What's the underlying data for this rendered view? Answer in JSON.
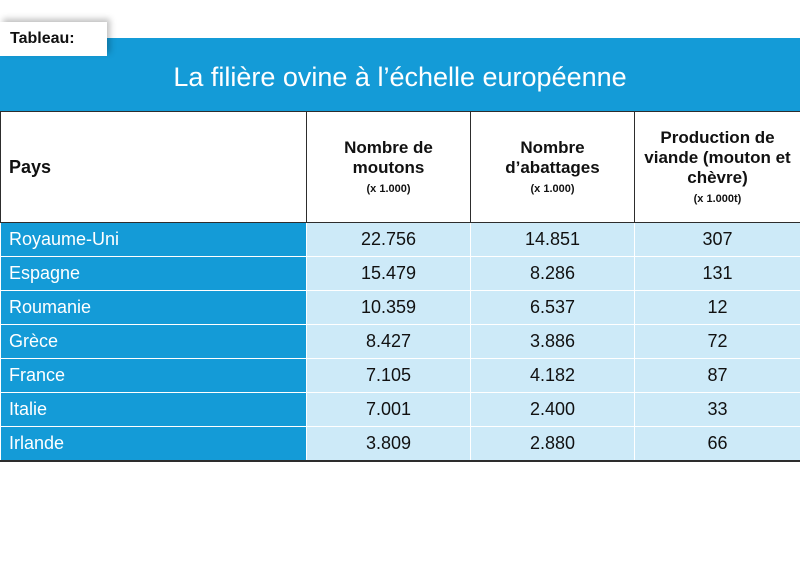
{
  "tab_label": "Tableau:",
  "title": "La filière ovine à l’échelle européenne",
  "colors": {
    "accent": "#149bd7",
    "cell": "#cdeaf8"
  },
  "chart_data": {
    "type": "table",
    "title": "La filière ovine à l’échelle européenne",
    "columns": [
      {
        "label": "Pays",
        "unit": ""
      },
      {
        "label": "Nombre de moutons",
        "unit": "(x 1.000)"
      },
      {
        "label": "Nombre d’abattages",
        "unit": "(x 1.000)"
      },
      {
        "label": "Production de viande (mouton et chèvre)",
        "unit": "(x 1.000t)"
      }
    ],
    "rows": [
      [
        "Royaume-Uni",
        "22.756",
        "14.851",
        "307"
      ],
      [
        "Espagne",
        "15.479",
        "8.286",
        "131"
      ],
      [
        "Roumanie",
        "10.359",
        "6.537",
        "12"
      ],
      [
        "Grèce",
        "8.427",
        "3.886",
        "72"
      ],
      [
        "France",
        "7.105",
        "4.182",
        "87"
      ],
      [
        "Italie",
        "7.001",
        "2.400",
        "33"
      ],
      [
        "Irlande",
        "3.809",
        "2.880",
        "66"
      ]
    ]
  }
}
